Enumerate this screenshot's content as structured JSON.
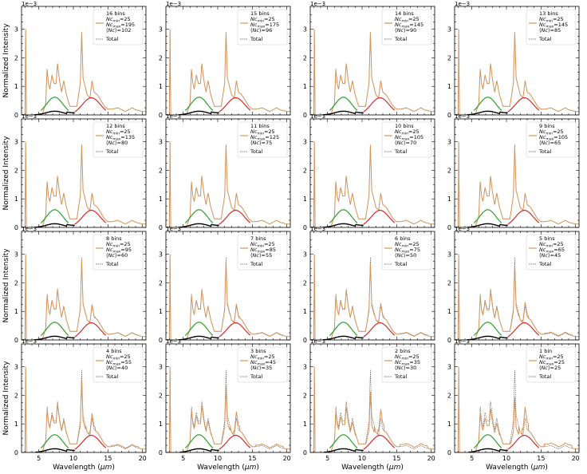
{
  "figure": {
    "rows": 4,
    "cols": 4,
    "ylabel": "Normalized Intensity",
    "xlabel_main": "Wavelength (",
    "xlabel_unit": "μm",
    "xlabel_close": ")",
    "scale_label": "1e−3",
    "colors": {
      "spectrum": "#d2955a",
      "total": "#555555",
      "green_band": "#2ca02c",
      "red_band": "#d62728",
      "black_band": "#000000"
    }
  },
  "chart_data": {
    "type": "line",
    "xlim": [
      2.5,
      20.5
    ],
    "ylim": [
      0,
      0.0038
    ],
    "x_ticks": [
      5,
      10,
      15,
      20
    ],
    "y_ticks": [
      0,
      1,
      2,
      3
    ],
    "grid": false,
    "legend_placement": "top-right",
    "legend_total_label": "Total",
    "panels": [
      {
        "bins_label": "16 bins",
        "nc_min": "25",
        "nc_max": "195",
        "nc_avg": "102",
        "deviation": 0.0
      },
      {
        "bins_label": "15 bins",
        "nc_min": "25",
        "nc_max": "175",
        "nc_avg": "96",
        "deviation": 0.0
      },
      {
        "bins_label": "14 bins",
        "nc_min": "25",
        "nc_max": "145",
        "nc_avg": "90",
        "deviation": 0.0
      },
      {
        "bins_label": "13 bins",
        "nc_min": "25",
        "nc_max": "145",
        "nc_avg": "85",
        "deviation": 0.0
      },
      {
        "bins_label": "12 bins",
        "nc_min": "25",
        "nc_max": "135",
        "nc_avg": "80",
        "deviation": 0.0
      },
      {
        "bins_label": "11 bins",
        "nc_min": "25",
        "nc_max": "125",
        "nc_avg": "75",
        "deviation": 0.0
      },
      {
        "bins_label": "10 bins",
        "nc_min": "25",
        "nc_max": "105",
        "nc_avg": "70",
        "deviation": 0.0
      },
      {
        "bins_label": "9 bins",
        "nc_min": "25",
        "nc_max": "105",
        "nc_avg": "65",
        "deviation": 0.0
      },
      {
        "bins_label": "8 bins",
        "nc_min": "25",
        "nc_max": "95",
        "nc_avg": "60",
        "deviation": 0.1
      },
      {
        "bins_label": "7 bins",
        "nc_min": "25",
        "nc_max": "85",
        "nc_avg": "55",
        "deviation": 0.15
      },
      {
        "bins_label": "6 bins",
        "nc_min": "25",
        "nc_max": "75",
        "nc_avg": "50",
        "deviation": 0.2
      },
      {
        "bins_label": "5 bins",
        "nc_min": "25",
        "nc_max": "65",
        "nc_avg": "45",
        "deviation": 0.3
      },
      {
        "bins_label": "4 bins",
        "nc_min": "25",
        "nc_max": "55",
        "nc_avg": "40",
        "deviation": 0.4
      },
      {
        "bins_label": "3 bins",
        "nc_min": "25",
        "nc_max": "45",
        "nc_avg": "35",
        "deviation": 0.55
      },
      {
        "bins_label": "2 bins",
        "nc_min": "25",
        "nc_max": "35",
        "nc_avg": "30",
        "deviation": 0.75
      },
      {
        "bins_label": "1 bin",
        "nc_min": "25",
        "nc_max": "25",
        "nc_avg": "25",
        "deviation": 0.95
      }
    ],
    "total_spectrum": [
      [
        2.5,
        0.0
      ],
      [
        3.0,
        0.0
      ],
      [
        3.1,
        0.003
      ],
      [
        3.2,
        0.0
      ],
      [
        4.5,
        0.0
      ],
      [
        5.5,
        2e-05
      ],
      [
        6.0,
        0.0004
      ],
      [
        6.2,
        0.0016
      ],
      [
        6.4,
        0.0011
      ],
      [
        6.6,
        0.0009
      ],
      [
        6.9,
        0.0014
      ],
      [
        7.2,
        0.0011
      ],
      [
        7.5,
        0.0011
      ],
      [
        7.7,
        0.0018
      ],
      [
        8.0,
        0.0012
      ],
      [
        8.3,
        0.0008
      ],
      [
        8.6,
        0.0012
      ],
      [
        9.0,
        0.0007
      ],
      [
        9.5,
        0.0003
      ],
      [
        10.0,
        0.0003
      ],
      [
        10.5,
        0.0003
      ],
      [
        11.0,
        0.0011
      ],
      [
        11.2,
        0.0029
      ],
      [
        11.4,
        0.0013
      ],
      [
        12.0,
        0.0007
      ],
      [
        12.4,
        0.0006
      ],
      [
        12.7,
        0.0012
      ],
      [
        13.0,
        0.0008
      ],
      [
        13.5,
        0.0007
      ],
      [
        14.0,
        0.0005
      ],
      [
        14.5,
        0.0003
      ],
      [
        15.0,
        0.0002
      ],
      [
        15.5,
        0.0002
      ],
      [
        16.0,
        0.00022
      ],
      [
        16.4,
        0.00025
      ],
      [
        17.0,
        0.00018
      ],
      [
        17.5,
        0.00012
      ],
      [
        18.0,
        0.00018
      ],
      [
        18.5,
        0.00025
      ],
      [
        19.0,
        0.00018
      ],
      [
        19.5,
        0.00015
      ],
      [
        20.0,
        0.00012
      ]
    ],
    "band_green": {
      "center": 7.3,
      "sigma": 1.2,
      "amplitude": 0.00062,
      "range": [
        5.3,
        9.3
      ]
    },
    "band_red": {
      "center": 12.6,
      "sigma": 1.3,
      "amplitude": 0.0006,
      "range": [
        10.2,
        14.7
      ]
    },
    "band_black_range": [
      4.5,
      10.2
    ]
  }
}
